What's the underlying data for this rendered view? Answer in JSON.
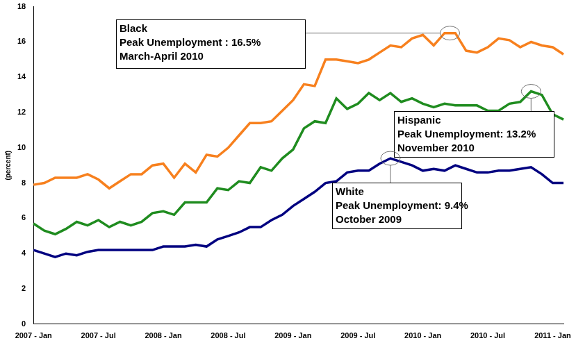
{
  "chart_data": {
    "type": "line",
    "y_label": "(percent)",
    "categories": [
      "2007 - Jan",
      null,
      null,
      null,
      null,
      null,
      "2007 - Jul",
      null,
      null,
      null,
      null,
      null,
      "2008 - Jan",
      null,
      null,
      null,
      null,
      null,
      "2008 - Jul",
      null,
      null,
      null,
      null,
      null,
      "2009 - Jan",
      null,
      null,
      null,
      null,
      null,
      "2009 - Jul",
      null,
      null,
      null,
      null,
      null,
      "2010 - Jan",
      null,
      null,
      null,
      null,
      null,
      "2010 - Jul",
      null,
      null,
      null,
      null,
      null,
      "2011 - Jan",
      null
    ],
    "series": [
      {
        "name": "Black",
        "color": "#f7801e",
        "values": [
          7.9,
          8.0,
          8.3,
          8.3,
          8.3,
          8.5,
          8.2,
          7.7,
          8.1,
          8.5,
          8.5,
          9.0,
          9.1,
          8.3,
          9.1,
          8.6,
          9.6,
          9.5,
          10.0,
          10.7,
          11.4,
          11.4,
          11.5,
          12.1,
          12.7,
          13.6,
          13.5,
          15.0,
          15.0,
          14.9,
          14.8,
          15.0,
          15.4,
          15.8,
          15.7,
          16.2,
          16.4,
          15.8,
          16.5,
          16.5,
          15.5,
          15.4,
          15.7,
          16.2,
          16.1,
          15.7,
          16.0,
          15.8,
          15.7,
          15.3
        ]
      },
      {
        "name": "Hispanic",
        "color": "#1f8c1f",
        "values": [
          5.7,
          5.3,
          5.1,
          5.4,
          5.8,
          5.6,
          5.9,
          5.5,
          5.8,
          5.6,
          5.8,
          6.3,
          6.4,
          6.2,
          6.9,
          6.9,
          6.9,
          7.7,
          7.6,
          8.1,
          8.0,
          8.9,
          8.7,
          9.4,
          9.9,
          11.1,
          11.5,
          11.4,
          12.8,
          12.2,
          12.5,
          13.1,
          12.7,
          13.1,
          12.6,
          12.8,
          12.5,
          12.3,
          12.5,
          12.4,
          12.4,
          12.4,
          12.1,
          12.1,
          12.5,
          12.6,
          13.2,
          13.0,
          11.9,
          11.6
        ]
      },
      {
        "name": "White",
        "color": "#000080",
        "values": [
          4.2,
          4.0,
          3.8,
          4.0,
          3.9,
          4.1,
          4.2,
          4.2,
          4.2,
          4.2,
          4.2,
          4.2,
          4.4,
          4.4,
          4.4,
          4.5,
          4.4,
          4.8,
          5.0,
          5.2,
          5.5,
          5.5,
          5.9,
          6.2,
          6.7,
          7.1,
          7.5,
          8.0,
          8.1,
          8.6,
          8.7,
          8.7,
          9.1,
          9.4,
          9.2,
          9.0,
          8.7,
          8.8,
          8.7,
          9.0,
          8.8,
          8.6,
          8.6,
          8.7,
          8.7,
          8.8,
          8.9,
          8.5,
          8.0,
          8.0
        ]
      }
    ],
    "annotations": [
      {
        "series": "Black",
        "lines": [
          "Black",
          "Peak Unemployment : 16.5%",
          "March-April 2010"
        ]
      },
      {
        "series": "Hispanic",
        "lines": [
          "Hispanic",
          "Peak Unemployment: 13.2%",
          "November 2010"
        ]
      },
      {
        "series": "White",
        "lines": [
          "White",
          "Peak Unemployment: 9.4%",
          "October 2009"
        ]
      }
    ],
    "ylim": [
      0,
      18
    ],
    "yticks": [
      0,
      2,
      4,
      6,
      8,
      10,
      12,
      14,
      16,
      18
    ],
    "grid": false
  }
}
